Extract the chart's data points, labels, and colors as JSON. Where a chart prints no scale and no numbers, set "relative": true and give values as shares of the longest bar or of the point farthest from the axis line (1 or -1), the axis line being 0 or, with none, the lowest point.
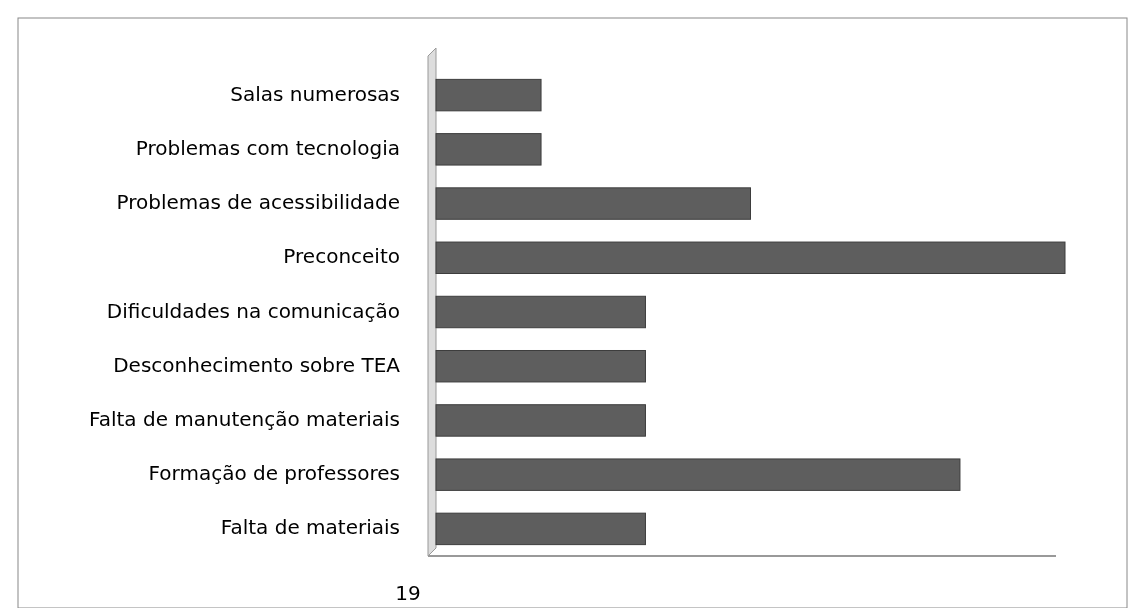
{
  "chart_data": {
    "type": "bar",
    "orientation": "horizontal",
    "relative": true,
    "categories": [
      "Salas numerosas",
      "Problemas com tecnologia",
      "Problemas de acessibilidade",
      "Preconceito",
      "Dificuldades na comunicação",
      "Desconhecimento sobre TEA",
      "Falta de manutenção materiais",
      "Formação de professores",
      "Falta de materiais"
    ],
    "values": [
      0.167,
      0.167,
      0.5,
      1,
      0.333,
      0.333,
      0.333,
      0.833,
      0.333
    ],
    "color": "#5e5e5e",
    "annotations": [
      "19"
    ]
  }
}
